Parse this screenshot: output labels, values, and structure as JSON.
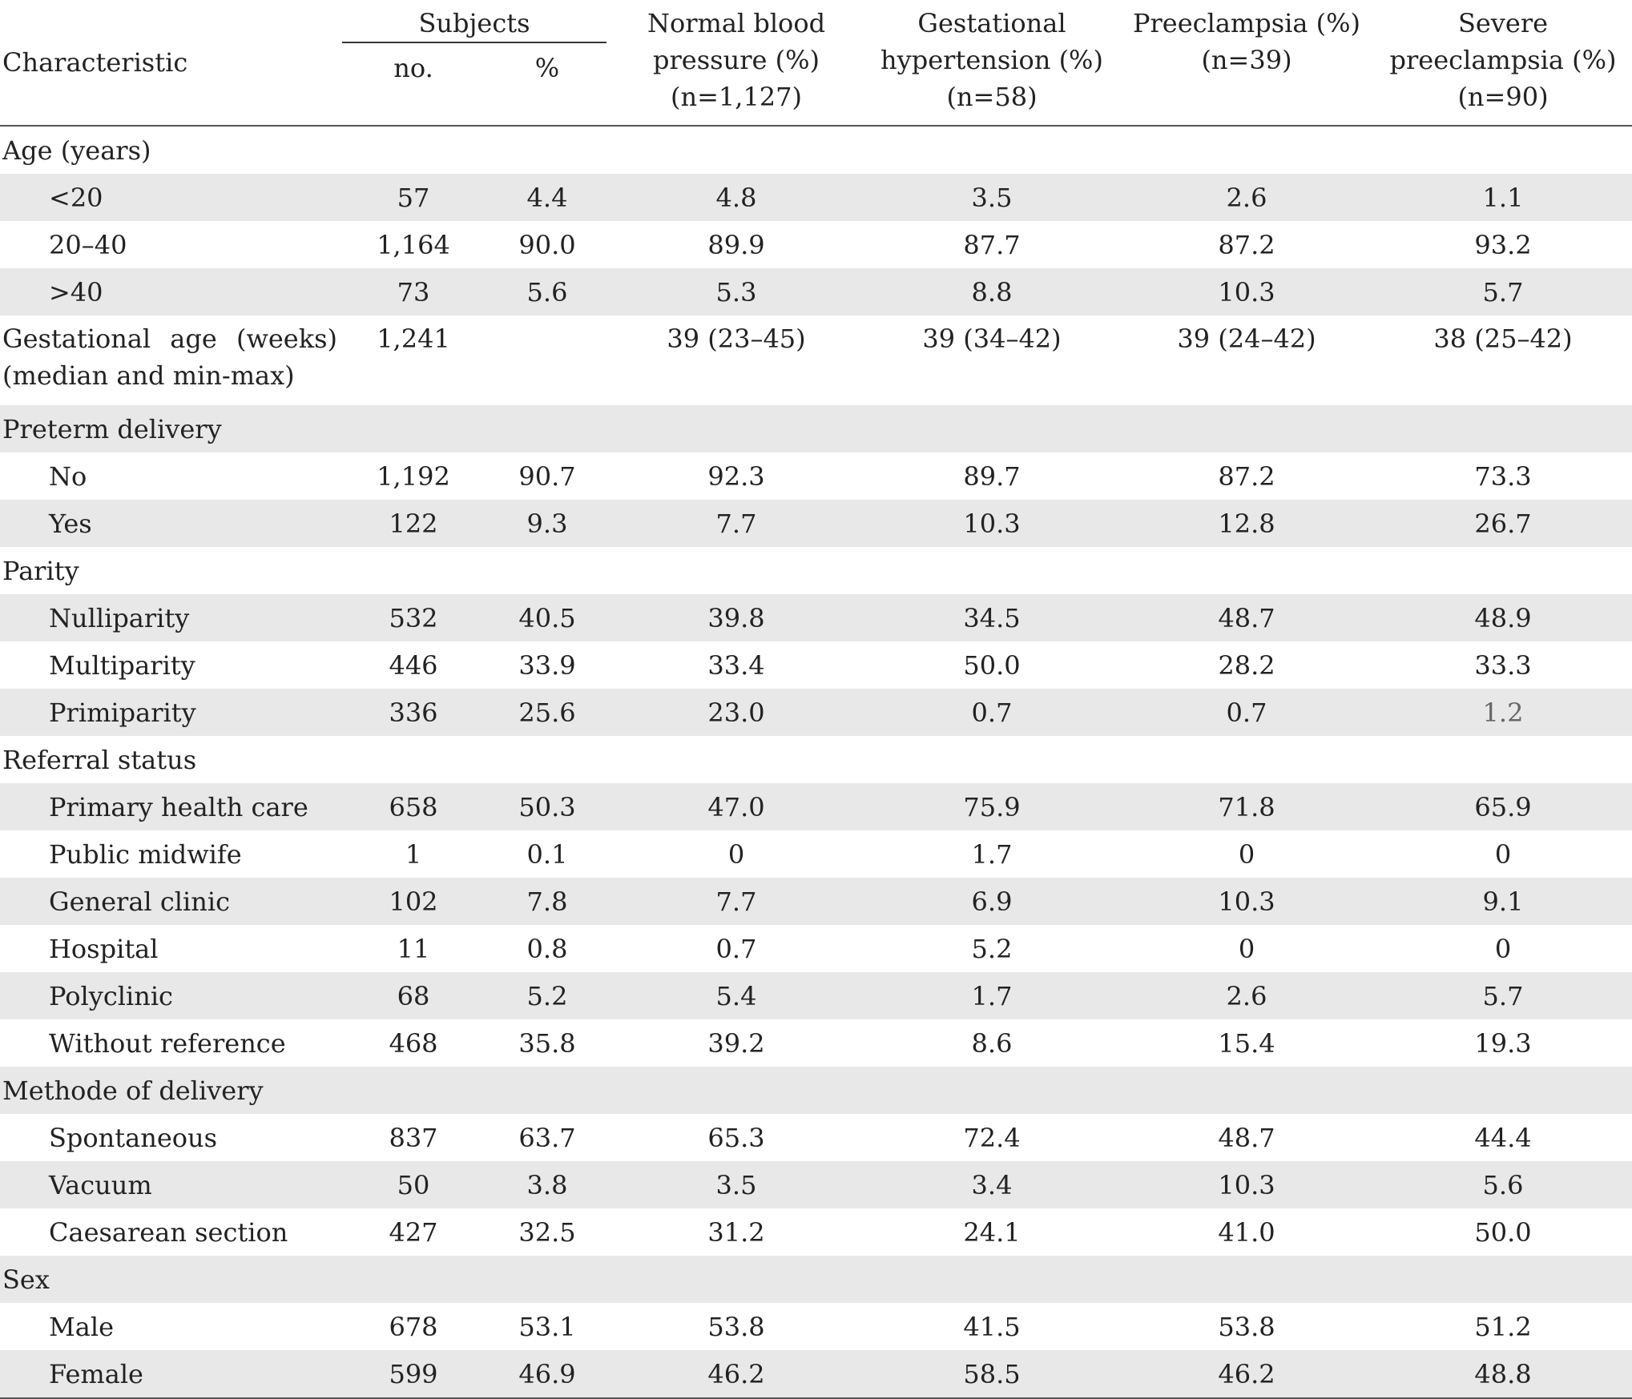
{
  "header": {
    "characteristic": "Characteristic",
    "subjects": "Subjects",
    "no": "no.",
    "pct": "%",
    "normal": [
      "Normal blood",
      "pressure (%)",
      "(n=1,127)"
    ],
    "gestational": [
      "Gestational",
      "hypertension (%)",
      "(n=58)"
    ],
    "preeclampsia": [
      "Preeclampsia (%)",
      "(n=39)"
    ],
    "severe": [
      "Severe",
      "preeclampsia (%)",
      "(n=90)"
    ]
  },
  "rows": [
    {
      "label": "Age (years)",
      "values": [
        "",
        "",
        "",
        "",
        "",
        ""
      ]
    },
    {
      "label": "<20",
      "values": [
        "57",
        "4.4",
        "4.8",
        "3.5",
        "2.6",
        "1.1"
      ]
    },
    {
      "label": "20–40",
      "values": [
        "1,164",
        "90.0",
        "89.9",
        "87.7",
        "87.2",
        "93.2"
      ]
    },
    {
      "label": ">40",
      "values": [
        "73",
        "5.6",
        "5.3",
        "8.8",
        "10.3",
        "5.7"
      ]
    },
    {
      "label": "Gestational age (weeks) (median and min-max)",
      "values": [
        "1,241",
        "",
        "39 (23–45)",
        "39 (34–42)",
        "39 (24–42)",
        "38 (25–42)"
      ]
    },
    {
      "label": "Preterm delivery",
      "values": [
        "",
        "",
        "",
        "",
        "",
        ""
      ]
    },
    {
      "label": "No",
      "values": [
        "1,192",
        "90.7",
        "92.3",
        "89.7",
        "87.2",
        "73.3"
      ]
    },
    {
      "label": "Yes",
      "values": [
        "122",
        "9.3",
        "7.7",
        "10.3",
        "12.8",
        "26.7"
      ]
    },
    {
      "label": "Parity",
      "values": [
        "",
        "",
        "",
        "",
        "",
        ""
      ]
    },
    {
      "label": "Nulliparity",
      "values": [
        "532",
        "40.5",
        "39.8",
        "34.5",
        "48.7",
        "48.9"
      ]
    },
    {
      "label": "Multiparity",
      "values": [
        "446",
        "33.9",
        "33.4",
        "50.0",
        "28.2",
        "33.3"
      ]
    },
    {
      "label": "Primiparity",
      "values": [
        "336",
        "25.6",
        "23.0",
        "0.7",
        "0.7",
        "1.2"
      ]
    },
    {
      "label": "Referral status",
      "values": [
        "",
        "",
        "",
        "",
        "",
        ""
      ]
    },
    {
      "label": "Primary health care",
      "values": [
        "658",
        "50.3",
        "47.0",
        "75.9",
        "71.8",
        "65.9"
      ]
    },
    {
      "label": "Public midwife",
      "values": [
        "1",
        "0.1",
        "0",
        "1.7",
        "0",
        "0"
      ]
    },
    {
      "label": "General clinic",
      "values": [
        "102",
        "7.8",
        "7.7",
        "6.9",
        "10.3",
        "9.1"
      ]
    },
    {
      "label": "Hospital",
      "values": [
        "11",
        "0.8",
        "0.7",
        "5.2",
        "0",
        "0"
      ]
    },
    {
      "label": "Polyclinic",
      "values": [
        "68",
        "5.2",
        "5.4",
        "1.7",
        "2.6",
        "5.7"
      ]
    },
    {
      "label": "Without reference",
      "values": [
        "468",
        "35.8",
        "39.2",
        "8.6",
        "15.4",
        "19.3"
      ]
    },
    {
      "label": "Methode of delivery",
      "values": [
        "",
        "",
        "",
        "",
        "",
        ""
      ]
    },
    {
      "label": "Spontaneous",
      "values": [
        "837",
        "63.7",
        "65.3",
        "72.4",
        "48.7",
        "44.4"
      ]
    },
    {
      "label": "Vacuum",
      "values": [
        "50",
        "3.8",
        "3.5",
        "3.4",
        "10.3",
        "5.6"
      ]
    },
    {
      "label": "Caesarean section",
      "values": [
        "427",
        "32.5",
        "31.2",
        "24.1",
        "41.0",
        "50.0"
      ]
    },
    {
      "label": "Sex",
      "values": [
        "",
        "",
        "",
        "",
        "",
        ""
      ]
    },
    {
      "label": "Male",
      "values": [
        "678",
        "53.1",
        "53.8",
        "41.5",
        "53.8",
        "51.2"
      ]
    },
    {
      "label": "Female",
      "values": [
        "599",
        "46.9",
        "46.2",
        "58.5",
        "46.2",
        "48.8"
      ]
    }
  ],
  "colors": {
    "shade": "#e8e8e8",
    "text": "#222222",
    "rule": "#555555"
  }
}
